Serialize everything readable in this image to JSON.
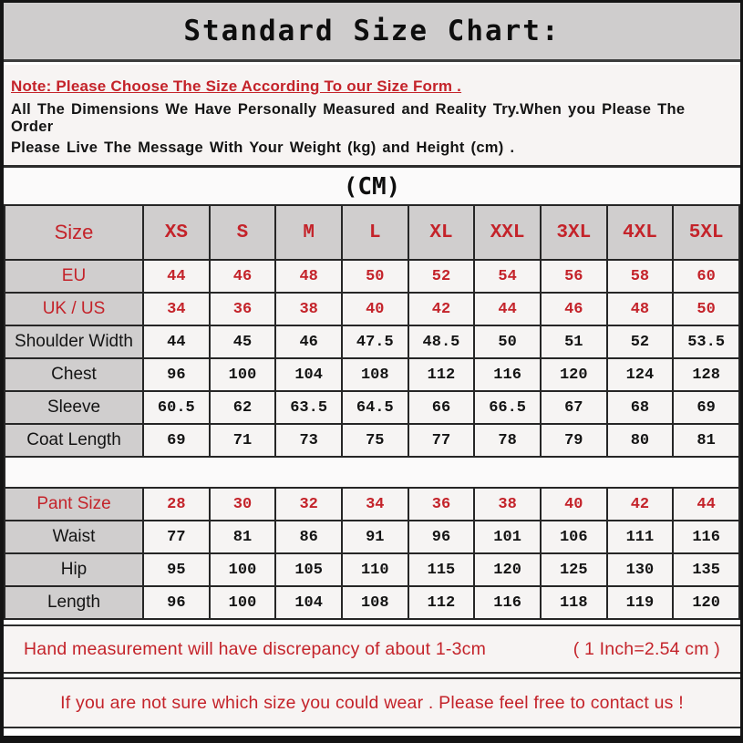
{
  "title": "Standard Size Chart:",
  "note": {
    "line1": "Note: Please Choose The Size According To our Size Form .",
    "line2": "All The Dimensions We Have Personally Measured and Reality Try.When you Please The Order",
    "line3": "Please Live The Message With Your Weight (kg) and Height (cm) ."
  },
  "unit_header": "(CM)",
  "size_table": {
    "header": [
      "Size",
      "XS",
      "S",
      "M",
      "L",
      "XL",
      "XXL",
      "3XL",
      "4XL",
      "5XL"
    ],
    "rows": [
      {
        "label": "EU",
        "style": "red",
        "values": [
          "44",
          "46",
          "48",
          "50",
          "52",
          "54",
          "56",
          "58",
          "60"
        ]
      },
      {
        "label": "UK / US",
        "style": "red",
        "values": [
          "34",
          "36",
          "38",
          "40",
          "42",
          "44",
          "46",
          "48",
          "50"
        ]
      },
      {
        "label": "Shoulder Width",
        "style": "black",
        "values": [
          "44",
          "45",
          "46",
          "47.5",
          "48.5",
          "50",
          "51",
          "52",
          "53.5"
        ]
      },
      {
        "label": "Chest",
        "style": "black",
        "values": [
          "96",
          "100",
          "104",
          "108",
          "112",
          "116",
          "120",
          "124",
          "128"
        ]
      },
      {
        "label": "Sleeve",
        "style": "black",
        "values": [
          "60.5",
          "62",
          "63.5",
          "64.5",
          "66",
          "66.5",
          "67",
          "68",
          "69"
        ]
      },
      {
        "label": "Coat Length",
        "style": "black",
        "values": [
          "69",
          "71",
          "73",
          "75",
          "77",
          "78",
          "79",
          "80",
          "81"
        ]
      }
    ]
  },
  "pant_table": {
    "rows": [
      {
        "label": "Pant Size",
        "style": "red",
        "values": [
          "28",
          "30",
          "32",
          "34",
          "36",
          "38",
          "40",
          "42",
          "44"
        ]
      },
      {
        "label": "Waist",
        "style": "black",
        "values": [
          "77",
          "81",
          "86",
          "91",
          "96",
          "101",
          "106",
          "111",
          "116"
        ]
      },
      {
        "label": "Hip",
        "style": "black",
        "values": [
          "95",
          "100",
          "105",
          "110",
          "115",
          "120",
          "125",
          "130",
          "135"
        ]
      },
      {
        "label": "Length",
        "style": "black",
        "values": [
          "96",
          "100",
          "104",
          "108",
          "112",
          "116",
          "118",
          "119",
          "120"
        ]
      }
    ]
  },
  "footer": {
    "measurement_note": "Hand measurement will have discrepancy of about 1-3cm",
    "inch_conversion": "( 1 Inch=2.54 cm )",
    "contact_note": "If you are not sure which size you could wear . Please feel free to contact us !"
  },
  "colors": {
    "accent_red": "#c4232a",
    "header_gray": "#d0cece",
    "cell_bg": "#f6f4f3",
    "border": "#262626"
  }
}
